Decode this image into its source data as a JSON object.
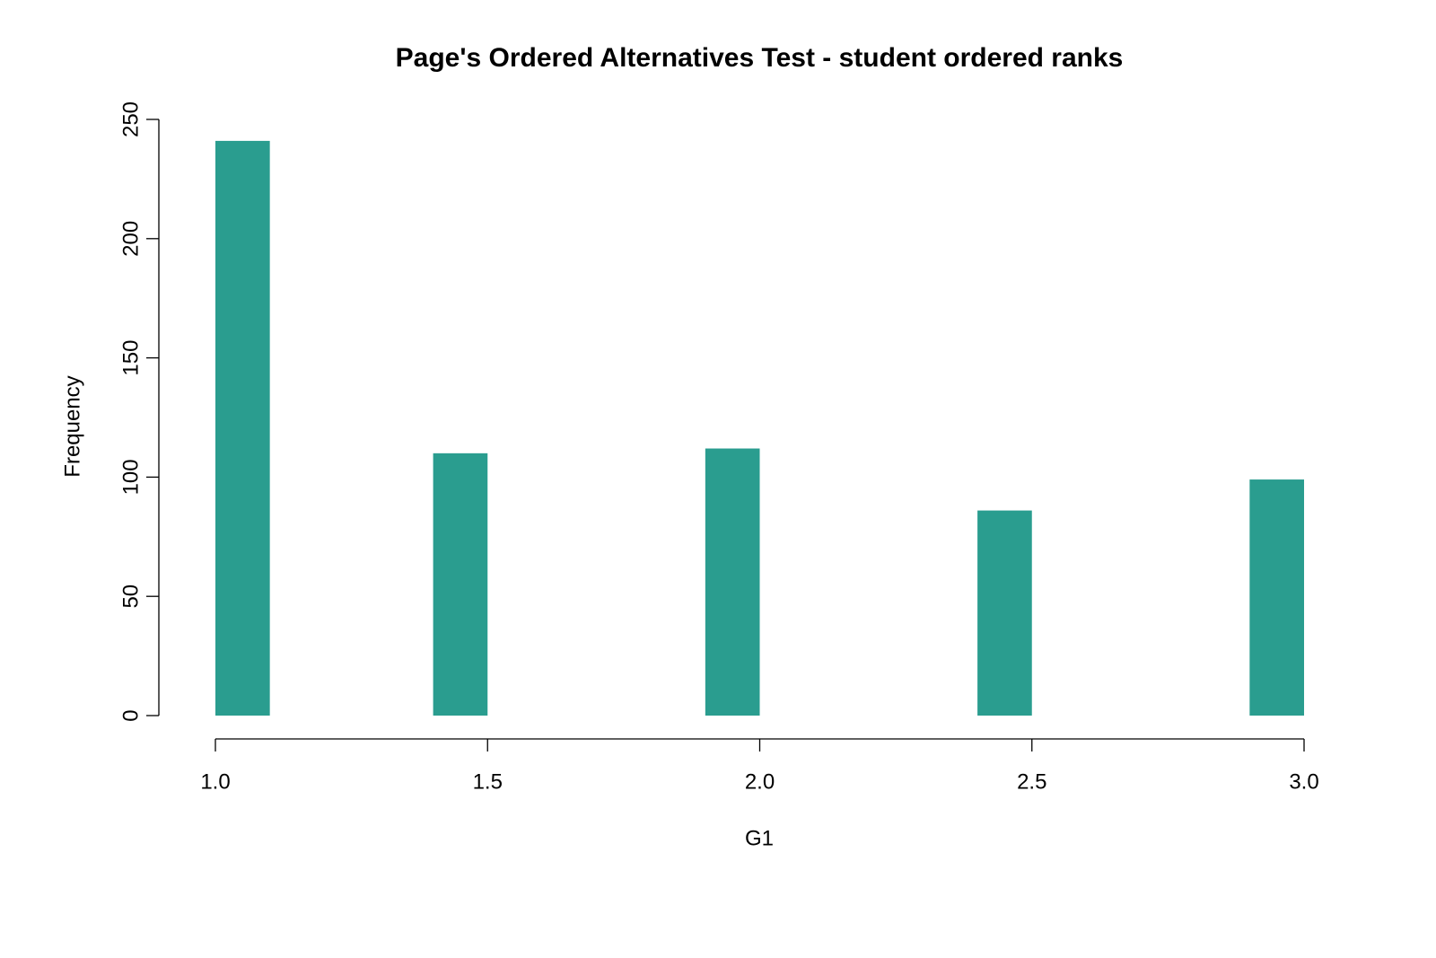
{
  "chart_data": {
    "type": "histogram",
    "title": "Page's Ordered Alternatives Test - student ordered ranks",
    "x_label": "G1",
    "y_label": "Frequency",
    "bins": [
      1.0,
      1.1,
      1.2,
      1.3,
      1.4,
      1.5,
      1.6,
      1.7,
      1.8,
      1.9,
      2.0,
      2.1,
      2.2,
      2.3,
      2.4,
      2.5,
      2.6,
      2.7,
      2.8,
      2.9,
      3.0
    ],
    "values": [
      241,
      0,
      0,
      0,
      110,
      0,
      0,
      0,
      0,
      112,
      0,
      0,
      0,
      0,
      86,
      0,
      0,
      0,
      0,
      99
    ],
    "color": "#2a9d8f",
    "xlim": [
      1,
      3
    ],
    "xticks": [
      {
        "value": 1,
        "label": "1.0"
      },
      1.5,
      {
        "value": 2,
        "label": "2.0"
      },
      2.5,
      {
        "value": 3,
        "label": "3.0"
      }
    ],
    "ylim": [
      0,
      250
    ],
    "yticks": [
      0,
      50,
      100,
      150,
      200,
      250
    ]
  }
}
